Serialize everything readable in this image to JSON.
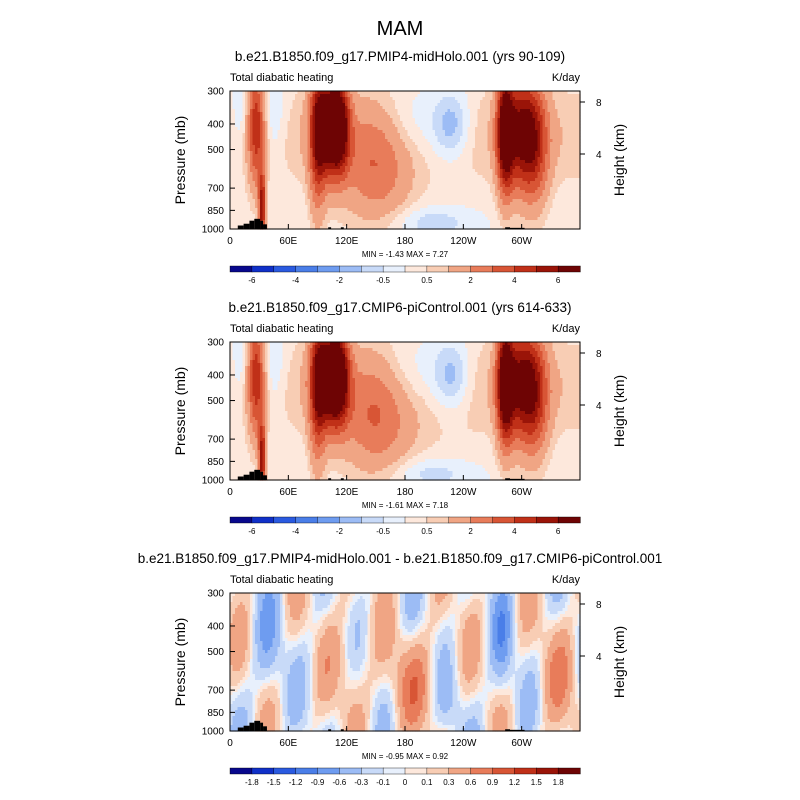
{
  "figure_title": "MAM",
  "units": "K/day",
  "variable": "Total diabatic heating",
  "colors": {
    "levels_full": [
      "#08088c",
      "#1030c8",
      "#2a5ae0",
      "#4a7ee8",
      "#6e9cf0",
      "#9cbcf5",
      "#c8daf8",
      "#e8f0fc",
      "#fde8dc",
      "#f8cdb4",
      "#f0a584",
      "#e87c5a",
      "#d85535",
      "#c03018",
      "#9a1408",
      "#6e0404"
    ],
    "land": "#000000"
  },
  "chart_data": [
    {
      "type": "heatmap",
      "title": "b.e21.B1850.f09_g17.PMIP4-midHolo.001 (yrs 90-109)",
      "left_label": "Total diabatic heating",
      "right_label": "K/day",
      "ylabel": "Pressure (mb)",
      "ylabel_right": "Height (km)",
      "xticks": [
        "0",
        "60E",
        "120E",
        "180",
        "120W",
        "60W"
      ],
      "xtick_values": [
        0,
        60,
        120,
        180,
        240,
        300
      ],
      "xlim": [
        0,
        360
      ],
      "yticks": [
        "300",
        "400",
        "500",
        "700",
        "850",
        "1000"
      ],
      "ytick_values": [
        300,
        400,
        500,
        700,
        850,
        1000
      ],
      "ylim": [
        300,
        1000
      ],
      "height_ticks": [
        "8",
        "4"
      ],
      "height_tick_values": [
        8,
        4
      ],
      "stats": "MIN =  -1.43  MAX =   7.27",
      "min": -1.43,
      "max": 7.27,
      "colorbar_labels": [
        "-6",
        "-4",
        "-2",
        "-0.5",
        "0.5",
        "2",
        "4",
        "6"
      ],
      "colorbar_levels": [
        -7,
        -6,
        -5,
        -4,
        -3,
        -2,
        -1,
        -0.5,
        0,
        0.5,
        1,
        2,
        3,
        4,
        5,
        6,
        7
      ],
      "mode": "full"
    },
    {
      "type": "heatmap",
      "title": "b.e21.B1850.f09_g17.CMIP6-piControl.001 (yrs 614-633)",
      "left_label": "Total diabatic heating",
      "right_label": "K/day",
      "ylabel": "Pressure (mb)",
      "ylabel_right": "Height (km)",
      "xticks": [
        "0",
        "60E",
        "120E",
        "180",
        "120W",
        "60W"
      ],
      "xtick_values": [
        0,
        60,
        120,
        180,
        240,
        300
      ],
      "xlim": [
        0,
        360
      ],
      "yticks": [
        "300",
        "400",
        "500",
        "700",
        "850",
        "1000"
      ],
      "ytick_values": [
        300,
        400,
        500,
        700,
        850,
        1000
      ],
      "ylim": [
        300,
        1000
      ],
      "height_ticks": [
        "8",
        "4"
      ],
      "height_tick_values": [
        8,
        4
      ],
      "stats": "MIN =  -1.61  MAX =   7.18",
      "min": -1.61,
      "max": 7.18,
      "colorbar_labels": [
        "-6",
        "-4",
        "-2",
        "-0.5",
        "0.5",
        "2",
        "4",
        "6"
      ],
      "colorbar_levels": [
        -7,
        -6,
        -5,
        -4,
        -3,
        -2,
        -1,
        -0.5,
        0,
        0.5,
        1,
        2,
        3,
        4,
        5,
        6,
        7
      ],
      "mode": "full"
    },
    {
      "type": "heatmap",
      "title": "b.e21.B1850.f09_g17.PMIP4-midHolo.001 - b.e21.B1850.f09_g17.CMIP6-piControl.001",
      "left_label": "Total diabatic heating",
      "right_label": "K/day",
      "ylabel": "Pressure (mb)",
      "ylabel_right": "Height (km)",
      "xticks": [
        "0",
        "60E",
        "120E",
        "180",
        "120W",
        "60W"
      ],
      "xtick_values": [
        0,
        60,
        120,
        180,
        240,
        300
      ],
      "xlim": [
        0,
        360
      ],
      "yticks": [
        "300",
        "400",
        "500",
        "700",
        "850",
        "1000"
      ],
      "ytick_values": [
        300,
        400,
        500,
        700,
        850,
        1000
      ],
      "ylim": [
        300,
        1000
      ],
      "height_ticks": [
        "8",
        "4"
      ],
      "height_tick_values": [
        8,
        4
      ],
      "stats": "MIN =  -0.95  MAX =   0.92",
      "min": -0.95,
      "max": 0.92,
      "colorbar_labels": [
        "-1.8",
        "-1.5",
        "-1.2",
        "-0.9",
        "-0.6",
        "-0.3",
        "-0.1",
        "0",
        "0.1",
        "0.3",
        "0.6",
        "0.9",
        "1.2",
        "1.5",
        "1.8"
      ],
      "colorbar_levels": [
        -2,
        -1.8,
        -1.5,
        -1.2,
        -0.9,
        -0.6,
        -0.3,
        -0.1,
        0,
        0.1,
        0.3,
        0.6,
        0.9,
        1.2,
        1.5,
        1.8,
        2
      ],
      "mode": "diff"
    }
  ]
}
